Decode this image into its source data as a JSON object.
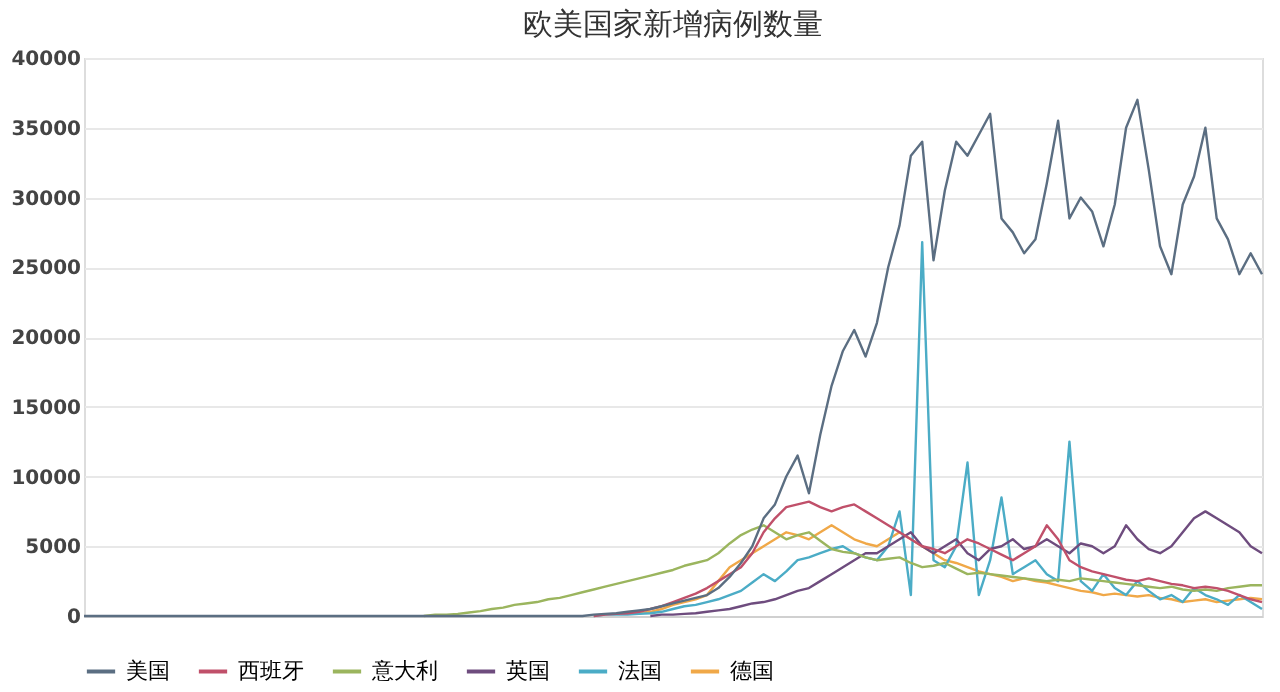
{
  "chart_data": {
    "type": "line",
    "title": "欧美国家新增病例数量",
    "categories": [
      null,
      null,
      null,
      null,
      null,
      null,
      null,
      null,
      null,
      null,
      null,
      null,
      null,
      null,
      null,
      null,
      null,
      null,
      null,
      null,
      null,
      null,
      null,
      null,
      null,
      null,
      null,
      null,
      null,
      null,
      null,
      null,
      null,
      null,
      null,
      null,
      null,
      null,
      null,
      null,
      null,
      null,
      null,
      null,
      null,
      null,
      null,
      null,
      null,
      null,
      null,
      null,
      null,
      null,
      null,
      null,
      null,
      null,
      null,
      null,
      null,
      null,
      null,
      null,
      null,
      null,
      null,
      null,
      null,
      null,
      null,
      null,
      null,
      null,
      null,
      null,
      null,
      null,
      null,
      null,
      null,
      null,
      null,
      null,
      null,
      null,
      null,
      null,
      null,
      null,
      null,
      null,
      null,
      null,
      null,
      null,
      null,
      null,
      null,
      null,
      null,
      null,
      null,
      null,
      null
    ],
    "series": [
      {
        "name": "美国",
        "color": "#5b6e82",
        "values": [
          0,
          0,
          0,
          0,
          0,
          0,
          0,
          0,
          0,
          0,
          0,
          0,
          0,
          0,
          0,
          0,
          0,
          0,
          0,
          0,
          0,
          0,
          0,
          0,
          0,
          0,
          0,
          0,
          0,
          0,
          0,
          0,
          0,
          0,
          0,
          0,
          0,
          0,
          0,
          0,
          0,
          0,
          0,
          0,
          0,
          100,
          150,
          200,
          300,
          400,
          500,
          700,
          900,
          1100,
          1300,
          1500,
          2000,
          2800,
          3800,
          5000,
          7000,
          8000,
          10000,
          11500,
          8800,
          13000,
          16500,
          19000,
          20500,
          18600,
          21000,
          25000,
          28000,
          33000,
          34000,
          25500,
          30500,
          34000,
          33000,
          34500,
          36000,
          28500,
          27500,
          26000,
          27000,
          31000,
          35500,
          28500,
          30000,
          29000,
          26500,
          29500,
          35000,
          37000,
          32000,
          26500,
          24500,
          29500,
          31500,
          35000,
          28500,
          27000,
          24500,
          26000,
          24500
        ]
      },
      {
        "name": "西班牙",
        "color": "#c0506a",
        "values": [
          null,
          null,
          null,
          null,
          null,
          null,
          null,
          null,
          null,
          null,
          null,
          null,
          null,
          null,
          null,
          null,
          null,
          null,
          null,
          null,
          null,
          null,
          null,
          null,
          null,
          null,
          null,
          null,
          null,
          null,
          null,
          null,
          null,
          null,
          null,
          null,
          null,
          null,
          null,
          null,
          null,
          null,
          null,
          null,
          null,
          0,
          100,
          150,
          200,
          300,
          500,
          700,
          1000,
          1300,
          1600,
          2000,
          2500,
          3000,
          3500,
          4500,
          6000,
          7000,
          7800,
          8000,
          8200,
          7800,
          7500,
          7800,
          8000,
          7500,
          7000,
          6500,
          6000,
          5500,
          5000,
          4800,
          4500,
          5000,
          5500,
          5200,
          4800,
          4400,
          4000,
          4500,
          5000,
          6500,
          5500,
          4000,
          3500,
          3200,
          3000,
          2800,
          2600,
          2500,
          2700,
          2500,
          2300,
          2200,
          2000,
          2100,
          2000,
          1800,
          1500,
          1200,
          1000
        ]
      },
      {
        "name": "意大利",
        "color": "#9bb55e",
        "values": [
          null,
          null,
          null,
          null,
          null,
          null,
          null,
          null,
          null,
          null,
          null,
          null,
          null,
          null,
          null,
          null,
          null,
          null,
          null,
          null,
          null,
          null,
          null,
          null,
          null,
          null,
          null,
          null,
          null,
          null,
          0,
          100,
          100,
          150,
          250,
          350,
          500,
          600,
          800,
          900,
          1000,
          1200,
          1300,
          1500,
          1700,
          1900,
          2100,
          2300,
          2500,
          2700,
          2900,
          3100,
          3300,
          3600,
          3800,
          4000,
          4500,
          5200,
          5800,
          6200,
          6500,
          6000,
          5500,
          5800,
          6000,
          5400,
          4800,
          4600,
          4500,
          4200,
          4000,
          4100,
          4200,
          3800,
          3500,
          3600,
          3800,
          3400,
          3000,
          3100,
          3000,
          2900,
          2800,
          2700,
          2600,
          2500,
          2600,
          2500,
          2700,
          2600,
          2500,
          2400,
          2300,
          2200,
          2100,
          2000,
          2100,
          1900,
          1800,
          1900,
          1800,
          2000,
          2100,
          2200,
          2200
        ]
      },
      {
        "name": "英国",
        "color": "#6e4c7e",
        "values": [
          null,
          null,
          null,
          null,
          null,
          null,
          null,
          null,
          null,
          null,
          null,
          null,
          null,
          null,
          null,
          null,
          null,
          null,
          null,
          null,
          null,
          null,
          null,
          null,
          null,
          null,
          null,
          null,
          null,
          null,
          null,
          null,
          null,
          null,
          null,
          null,
          null,
          null,
          null,
          null,
          null,
          null,
          null,
          null,
          null,
          null,
          null,
          null,
          null,
          null,
          0,
          100,
          100,
          150,
          200,
          300,
          400,
          500,
          700,
          900,
          1000,
          1200,
          1500,
          1800,
          2000,
          2500,
          3000,
          3500,
          4000,
          4500,
          4500,
          5000,
          5500,
          6000,
          5000,
          4500,
          5000,
          5500,
          4500,
          4000,
          4800,
          5000,
          5500,
          4800,
          5000,
          5500,
          5000,
          4500,
          5200,
          5000,
          4500,
          5000,
          6500,
          5500,
          4800,
          4500,
          5000,
          6000,
          7000,
          7500,
          7000,
          6500,
          6000,
          5000,
          4500
        ]
      },
      {
        "name": "法国",
        "color": "#4bacc6",
        "values": [
          null,
          null,
          null,
          null,
          null,
          null,
          null,
          null,
          null,
          null,
          null,
          null,
          null,
          null,
          null,
          null,
          null,
          null,
          null,
          null,
          null,
          null,
          null,
          null,
          null,
          null,
          null,
          null,
          null,
          null,
          null,
          null,
          null,
          null,
          null,
          null,
          null,
          null,
          null,
          null,
          null,
          null,
          null,
          null,
          null,
          0,
          100,
          100,
          100,
          150,
          200,
          300,
          500,
          700,
          800,
          1000,
          1200,
          1500,
          1800,
          2400,
          3000,
          2500,
          3200,
          4000,
          4200,
          4500,
          4800,
          5000,
          4500,
          4200,
          4000,
          5000,
          7500,
          1500,
          26800,
          4000,
          3500,
          5000,
          11000,
          1500,
          4000,
          8500,
          3000,
          3500,
          4000,
          3000,
          2500,
          12500,
          2500,
          1800,
          3000,
          2000,
          1500,
          2500,
          1800,
          1200,
          1500,
          1000,
          2000,
          1500,
          1200,
          800,
          1500,
          1000,
          500
        ]
      },
      {
        "name": "德国",
        "color": "#f0a848",
        "values": [
          null,
          null,
          null,
          null,
          null,
          null,
          null,
          null,
          null,
          null,
          null,
          null,
          null,
          null,
          null,
          null,
          null,
          null,
          null,
          null,
          null,
          null,
          null,
          null,
          null,
          null,
          null,
          null,
          null,
          null,
          null,
          null,
          null,
          null,
          null,
          null,
          null,
          null,
          null,
          null,
          null,
          null,
          null,
          null,
          null,
          null,
          null,
          null,
          150,
          200,
          300,
          500,
          800,
          1000,
          1200,
          1500,
          2500,
          3500,
          4000,
          4500,
          5000,
          5500,
          6000,
          5800,
          5500,
          6000,
          6500,
          6000,
          5500,
          5200,
          5000,
          5500,
          6000,
          5500,
          5000,
          4500,
          4000,
          3800,
          3500,
          3200,
          3000,
          2800,
          2500,
          2700,
          2500,
          2400,
          2200,
          2000,
          1800,
          1700,
          1500,
          1600,
          1500,
          1400,
          1500,
          1300,
          1200,
          1000,
          1100,
          1200,
          1000,
          1100,
          1200,
          1300,
          1200
        ]
      }
    ],
    "ylim": [
      0,
      40000
    ],
    "yticks": [
      0,
      5000,
      10000,
      15000,
      20000,
      25000,
      30000,
      35000,
      40000
    ],
    "grid": "y",
    "legend": "bottom",
    "tick_labels": "y",
    "marker": "none",
    "line_style": "solid"
  }
}
